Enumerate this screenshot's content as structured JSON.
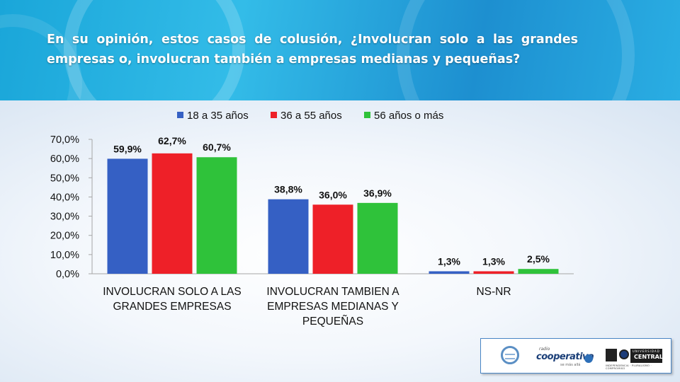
{
  "header": {
    "title": "En su opinión, estos casos de colusión, ¿Involucran solo a las grandes empresas o, involucran también a empresas medianas y pequeñas?"
  },
  "chart_data": {
    "type": "bar",
    "title": "",
    "xlabel": "",
    "ylabel": "",
    "ylim": [
      0,
      70
    ],
    "yticks": [
      0,
      10,
      20,
      30,
      40,
      50,
      60,
      70
    ],
    "tick_labels": [
      "0,0%",
      "10,0%",
      "20,0%",
      "30,0%",
      "40,0%",
      "50,0%",
      "60,0%",
      "70,0%"
    ],
    "grid": false,
    "legend": "top",
    "categories": [
      [
        "INVOLUCRAN SOLO A LAS",
        "GRANDES EMPRESAS"
      ],
      [
        "INVOLUCRAN TAMBIEN A",
        "EMPRESAS MEDIANAS Y",
        "PEQUEÑAS"
      ],
      [
        "NS-NR"
      ]
    ],
    "series": [
      {
        "name": "18 a 35 años",
        "color": "#3560c4",
        "values": [
          59.9,
          38.8,
          1.3
        ],
        "labels": [
          "59,9%",
          "38,8%",
          "1,3%"
        ]
      },
      {
        "name": "36 a 55 años",
        "color": "#ee2028",
        "values": [
          62.7,
          36.0,
          1.3
        ],
        "labels": [
          "62,7%",
          "36,0%",
          "1,3%"
        ]
      },
      {
        "name": "56 años o más",
        "color": "#2fc23a",
        "values": [
          60.7,
          36.9,
          2.5
        ],
        "labels": [
          "60,7%",
          "36,9%",
          "2,5%"
        ]
      }
    ]
  },
  "logos": {
    "coop_radio": "radio",
    "coop_name": "cooperativa",
    "coop_tag": "se más allá",
    "uc_top": "UNIVERSIDAD",
    "uc_name": "CENTRAL",
    "uc_tag": "INDEPENDENCIA · PLURALISMO · COMPROMISO"
  }
}
